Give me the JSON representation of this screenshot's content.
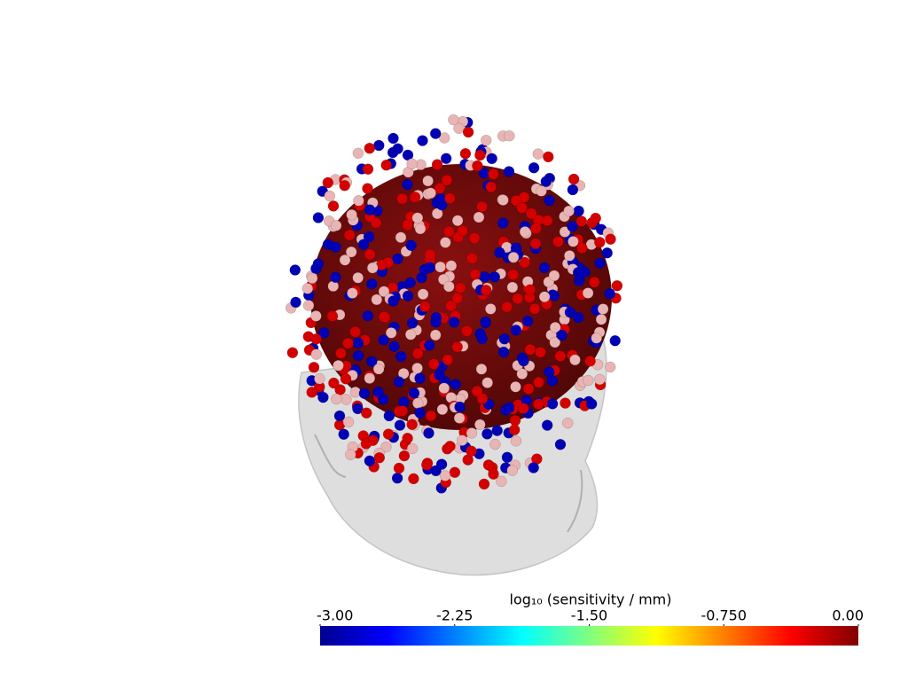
{
  "colorbar": {
    "title": "log₁₀ (sensitivity / mm)",
    "clim": [
      -3,
      0
    ],
    "colormap": "jet",
    "ticks": [
      {
        "value": -3,
        "label": "-3.00"
      },
      -2.25,
      {
        "value": -1.5,
        "label": "-1.50"
      },
      {
        "value": -0.75,
        "label": "-0.750"
      },
      {
        "value": 0,
        "label": "0.00"
      }
    ]
  }
}
